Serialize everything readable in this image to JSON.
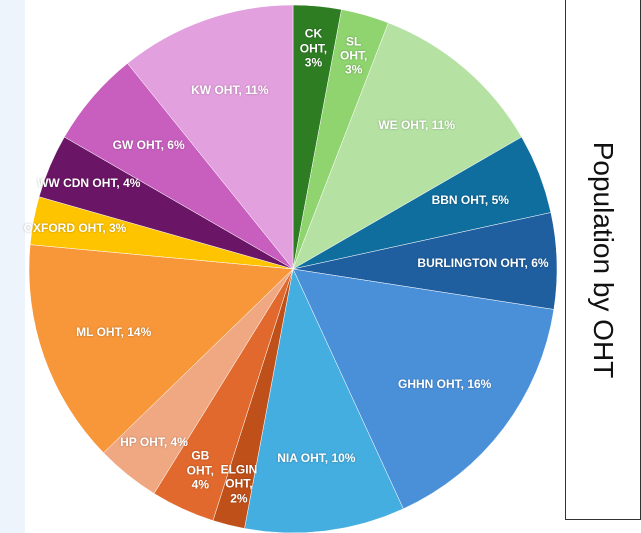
{
  "chart_data": {
    "type": "pie",
    "title": "Population by OHT",
    "categories": [
      "CK OHT",
      "SL OHT",
      "WE OHT",
      "BBN OHT",
      "BURLINGTON OHT",
      "GHHN OHT",
      "NIA OHT",
      "ELGIN OHT",
      "GB OHT",
      "HP OHT",
      "ML OHT",
      "OXFORD OHT",
      "WW CDN OHT",
      "GW OHT",
      "KW OHT"
    ],
    "values": [
      3,
      3,
      11,
      5,
      6,
      16,
      10,
      2,
      4,
      4,
      14,
      3,
      4,
      6,
      11
    ],
    "value_labels": [
      "CK OHT, 3%",
      "SL OHT, 3%",
      "WE OHT, 11%",
      "BBN OHT, 5%",
      "BURLINGTON OHT, 6%",
      "GHHN OHT, 16%",
      "NIA OHT, 10%",
      "ELGIN OHT, 2%",
      "GB OHT, 4%",
      "HP OHT, 4%",
      "ML OHT, 14%",
      "OXFORD OHT, 3%",
      "WW CDN OHT, 4%",
      "GW OHT, 6%",
      "KW OHT, 11%"
    ],
    "colors": [
      "#2e7d23",
      "#8fd46f",
      "#b5e2a3",
      "#0f6e9e",
      "#1f5fa0",
      "#4a90d9",
      "#44aee0",
      "#c0501a",
      "#e2692d",
      "#f0a882",
      "#f7973a",
      "#ffc400",
      "#6b1566",
      "#c85fbf",
      "#e3a0de"
    ]
  }
}
